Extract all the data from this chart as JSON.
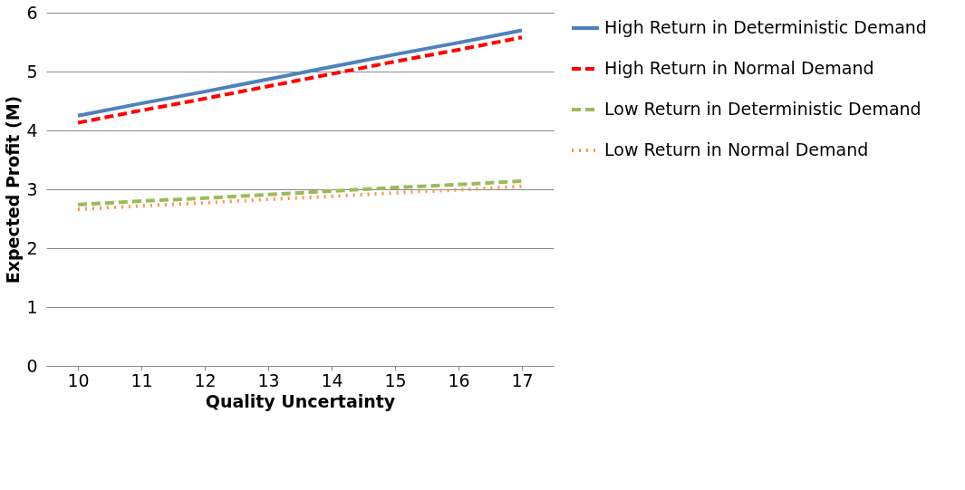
{
  "chart_data": {
    "type": "line",
    "xlabel": "Quality Uncertainty",
    "ylabel": "Expected Profit (M)",
    "categories": [
      "10",
      "11",
      "12",
      "13",
      "14",
      "15",
      "16",
      "17"
    ],
    "series": [
      {
        "name": "High Return in Deterministic Demand",
        "color": "#4f81bd",
        "line_style": "solid",
        "values": [
          4.25,
          4.46,
          4.66,
          4.87,
          5.08,
          5.29,
          5.49,
          5.7
        ]
      },
      {
        "name": "High Return in Normal Demand",
        "color": "#ff0000",
        "line_style": "dashed",
        "values": [
          4.13,
          4.34,
          4.54,
          4.75,
          4.96,
          5.17,
          5.37,
          5.58
        ]
      },
      {
        "name": "Low Return in Deterministic Demand",
        "color": "#9bbb59",
        "line_style": "dashed",
        "values": [
          2.74,
          2.8,
          2.85,
          2.91,
          2.97,
          3.03,
          3.08,
          3.14
        ]
      },
      {
        "name": "Low Return in Normal Demand",
        "color": "#f79646",
        "line_style": "dotted",
        "values": [
          2.66,
          2.72,
          2.77,
          2.83,
          2.88,
          2.94,
          2.99,
          3.05
        ]
      }
    ],
    "ylim": [
      0,
      6
    ],
    "yticks": [
      0,
      1,
      2,
      3,
      4,
      5,
      6
    ],
    "grid": "y",
    "legend": "right",
    "marker": "none"
  }
}
